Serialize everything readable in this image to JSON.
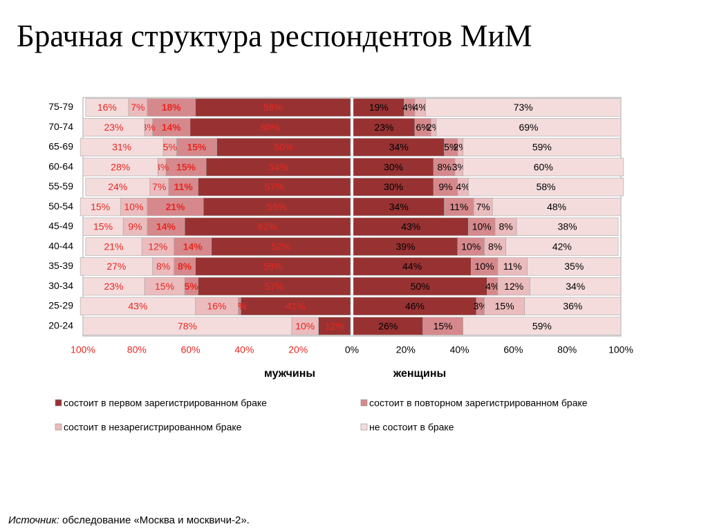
{
  "slide": {
    "title": "Брачная структура респондентов МиМ",
    "source_label": "Источник:",
    "source_text": " обследование «Москва и москвичи-2»."
  },
  "chart_data": {
    "type": "bar",
    "stacked": true,
    "orientation": "horizontal",
    "layout": "diverging-100-percent",
    "categories": [
      "75-79",
      "70-74",
      "65-69",
      "60-64",
      "55-59",
      "50-54",
      "45-49",
      "40-44",
      "35-39",
      "30-34",
      "25-29",
      "20-24"
    ],
    "groups": [
      {
        "name": "мужчины",
        "direction": "left",
        "label_color": "#e8261f",
        "series": [
          {
            "key": "first",
            "values": [
              58,
              60,
              50,
              54,
              57,
              55,
              62,
              52,
              58,
              57,
              41,
              12
            ]
          },
          {
            "key": "repeat",
            "values": [
              18,
              14,
              15,
              15,
              11,
              21,
              14,
              14,
              8,
              5,
              1,
              0
            ]
          },
          {
            "key": "unreg",
            "values": [
              7,
              3,
              5,
              3,
              7,
              10,
              9,
              12,
              8,
              15,
              16,
              10
            ]
          },
          {
            "key": "none",
            "values": [
              16,
              23,
              31,
              28,
              24,
              15,
              15,
              21,
              27,
              23,
              43,
              78
            ]
          }
        ]
      },
      {
        "name": "женщины",
        "direction": "right",
        "label_color": "#000000",
        "series": [
          {
            "key": "first",
            "values": [
              19,
              23,
              34,
              30,
              30,
              34,
              43,
              39,
              44,
              50,
              46,
              26
            ]
          },
          {
            "key": "repeat",
            "values": [
              4,
              6,
              5,
              8,
              9,
              11,
              10,
              10,
              10,
              4,
              3,
              15
            ]
          },
          {
            "key": "unreg",
            "values": [
              4,
              2,
              2,
              3,
              4,
              7,
              8,
              8,
              11,
              12,
              15,
              0
            ]
          },
          {
            "key": "none",
            "values": [
              73,
              69,
              59,
              60,
              58,
              48,
              38,
              42,
              35,
              34,
              36,
              59
            ]
          }
        ]
      }
    ],
    "bold_label_series": "repeat",
    "series_styles": {
      "first": {
        "name": "состоит в первом зарегистрированном браке",
        "color": "#983232"
      },
      "repeat": {
        "name": "состоит в повторном зарегистрированном браке",
        "color": "#d6898c"
      },
      "unreg": {
        "name": "состоит в незарегистрированном браке",
        "color": "#ebbcbe"
      },
      "none": {
        "name": "не состоит в браке",
        "color": "#f4dcdd"
      }
    },
    "legend_order": [
      "first",
      "repeat",
      "unreg",
      "none"
    ],
    "x_ticks": [
      "100%",
      "80%",
      "60%",
      "40%",
      "20%",
      "0%",
      "20%",
      "40%",
      "60%",
      "80%",
      "100%"
    ],
    "x_tick_colors": {
      "left": "#e8261f",
      "zero": "#000000",
      "right": "#000000"
    },
    "xlim": [
      -100,
      100
    ],
    "legend_position": "bottom",
    "grid": false
  }
}
